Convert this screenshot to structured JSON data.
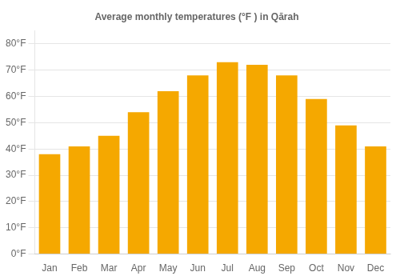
{
  "chart_data": {
    "type": "bar",
    "title": "Average monthly temperatures (°F ) in Qārah",
    "categories": [
      "Jan",
      "Feb",
      "Mar",
      "Apr",
      "May",
      "Jun",
      "Jul",
      "Aug",
      "Sep",
      "Oct",
      "Nov",
      "Dec"
    ],
    "values": [
      38,
      41,
      45,
      54,
      62,
      68,
      73,
      72,
      68,
      59,
      49,
      41
    ],
    "color": "#F5A800",
    "ylim": [
      0,
      85
    ],
    "yticks": [
      {
        "value": 0,
        "label": "0°F"
      },
      {
        "value": 10,
        "label": "10°F"
      },
      {
        "value": 20,
        "label": "20°F"
      },
      {
        "value": 30,
        "label": "30°F"
      },
      {
        "value": 40,
        "label": "40°F"
      },
      {
        "value": 50,
        "label": "50°F"
      },
      {
        "value": 60,
        "label": "60°F"
      },
      {
        "value": 70,
        "label": "70°F"
      },
      {
        "value": 80,
        "label": "80°F"
      }
    ],
    "grid": true
  }
}
